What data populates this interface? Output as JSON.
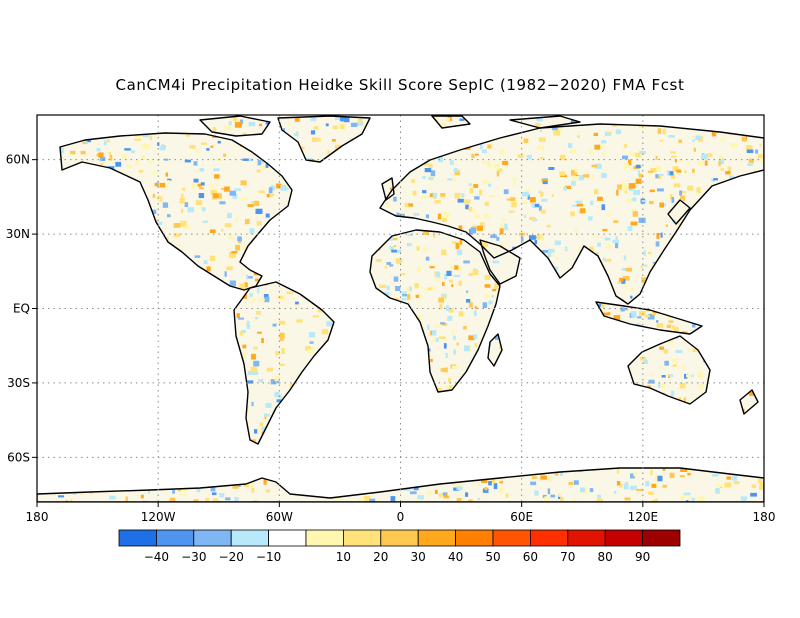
{
  "title": "CanCM4i Precipitation Heidke Skill Score SepIC (1982−2020) FMA Fcst",
  "axes": {
    "lon": {
      "ticks": [
        -180,
        -120,
        -60,
        0,
        60,
        120,
        180
      ],
      "labels": [
        "180",
        "120W",
        "60W",
        "0",
        "60E",
        "120E",
        "180"
      ]
    },
    "lat": {
      "range": [
        -78,
        78
      ],
      "ticks": [
        60,
        30,
        0,
        -30,
        -60
      ],
      "labels": [
        "60N",
        "30N",
        "EQ",
        "30S",
        "60S"
      ]
    },
    "grid": "dotted"
  },
  "colorbar": {
    "colors": [
      "#1f6fe6",
      "#4f95ef",
      "#7fb6f4",
      "#b7e9fb",
      "#ffffff",
      "#fff6b0",
      "#ffe27a",
      "#ffc850",
      "#ffa81e",
      "#ff7f00",
      "#ff5400",
      "#ff2f00",
      "#e01400",
      "#c40000",
      "#9e0000"
    ],
    "labels": [
      "−40",
      "−30",
      "−20",
      "−10",
      "10",
      "20",
      "30",
      "40",
      "50",
      "60",
      "70",
      "80",
      "90"
    ]
  },
  "colors": {
    "coastline": "#000000",
    "grid": "#8c8c8c",
    "ocean": "#ffffff",
    "land_base": "#ffffff"
  }
}
